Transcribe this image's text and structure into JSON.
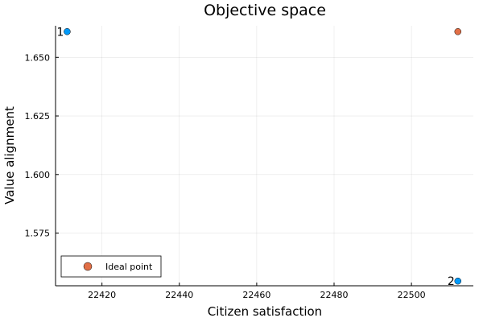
{
  "chart_data": {
    "type": "scatter",
    "title": "Objective space",
    "xlabel": "Citizen satisfaction",
    "ylabel": "Value alignment",
    "xlim": [
      22408,
      22516
    ],
    "ylim": [
      1.5525,
      1.6635
    ],
    "xticks": [
      22420,
      22440,
      22460,
      22480,
      22500
    ],
    "xtick_labels": [
      "22420",
      "22440",
      "22460",
      "22480",
      "22500"
    ],
    "yticks": [
      1.575,
      1.6,
      1.625,
      1.65
    ],
    "ytick_labels": [
      "1.575",
      "1.600",
      "1.625",
      "1.650"
    ],
    "grid": true,
    "legend_position": "bottom-left",
    "series": [
      {
        "color": "#009AFA",
        "points": [
          {
            "x": 22411,
            "y": 1.661,
            "label": "1"
          },
          {
            "x": 22512,
            "y": 1.5545,
            "label": "2"
          }
        ]
      },
      {
        "name": "Ideal point",
        "color": "#E26F46",
        "points": [
          {
            "x": 22512,
            "y": 1.661
          }
        ]
      }
    ]
  }
}
